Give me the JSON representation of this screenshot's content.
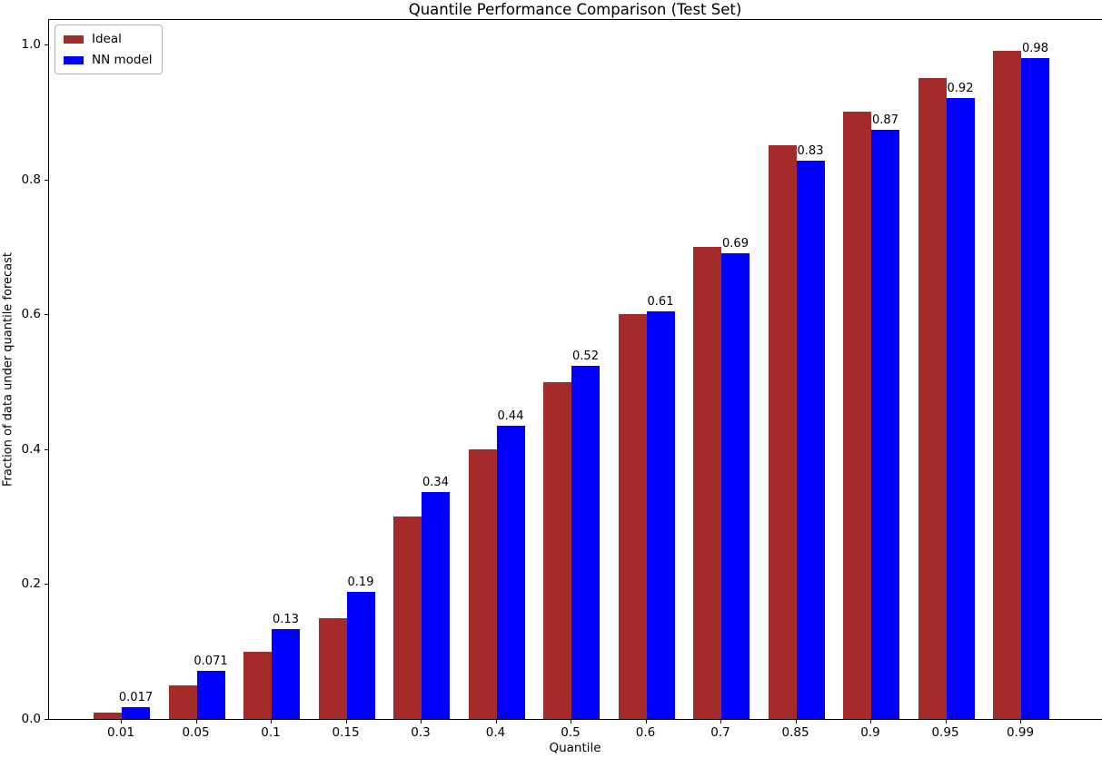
{
  "chart_data": {
    "type": "bar",
    "title": "Quantile Performance Comparison (Test Set)",
    "xlabel": "Quantile",
    "ylabel": "Fraction of data under quantile forecast",
    "categories": [
      "0.01",
      "0.05",
      "0.1",
      "0.15",
      "0.3",
      "0.4",
      "0.5",
      "0.6",
      "0.7",
      "0.85",
      "0.9",
      "0.95",
      "0.99"
    ],
    "series": [
      {
        "name": "Ideal",
        "color": "#a52a2a",
        "values": [
          0.01,
          0.05,
          0.1,
          0.15,
          0.3,
          0.4,
          0.5,
          0.6,
          0.7,
          0.85,
          0.9,
          0.95,
          0.99
        ]
      },
      {
        "name": "NN model",
        "color": "#0000ff",
        "values": [
          0.017,
          0.071,
          0.133,
          0.188,
          0.337,
          0.435,
          0.523,
          0.605,
          0.69,
          0.828,
          0.873,
          0.921,
          0.98
        ],
        "bar_labels": [
          "0.017",
          "0.071",
          "0.13",
          "0.19",
          "0.34",
          "0.44",
          "0.52",
          "0.61",
          "0.69",
          "0.83",
          "0.87",
          "0.92",
          "0.98"
        ]
      }
    ],
    "yticks": [
      {
        "value": 0.0,
        "label": "0.0"
      },
      {
        "value": 0.2,
        "label": "0.2"
      },
      {
        "value": 0.4,
        "label": "0.4"
      },
      {
        "value": 0.6,
        "label": "0.6"
      },
      {
        "value": 0.8,
        "label": "0.8"
      },
      {
        "value": 1.0,
        "label": "1.0"
      }
    ],
    "ylim": [
      0,
      1.039
    ],
    "legend_position": "upper left",
    "grid": false
  }
}
